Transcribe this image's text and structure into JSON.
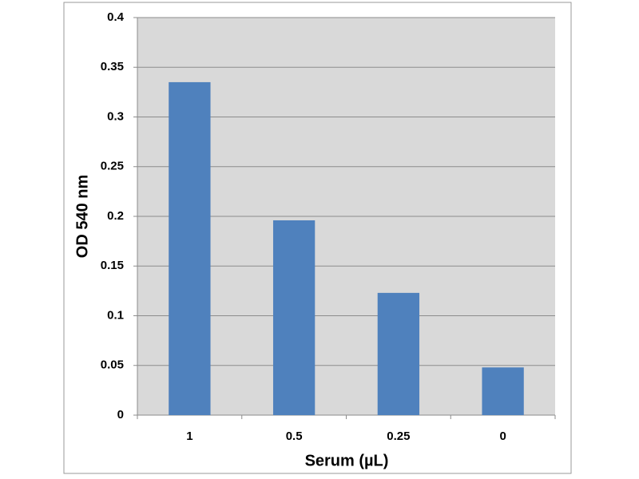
{
  "chart_data": {
    "type": "bar",
    "x_label": "Serum (µL)",
    "y_label": "OD 540 nm",
    "categories": [
      "1",
      "0.5",
      "0.25",
      "0"
    ],
    "values": [
      0.335,
      0.196,
      0.123,
      0.048
    ],
    "color": "#4f81bd",
    "ylim": [
      0,
      0.4
    ],
    "yticks": [
      0,
      0.05,
      0.1,
      0.15,
      0.2,
      0.25,
      0.3,
      0.35,
      0.4
    ],
    "grid": true
  }
}
